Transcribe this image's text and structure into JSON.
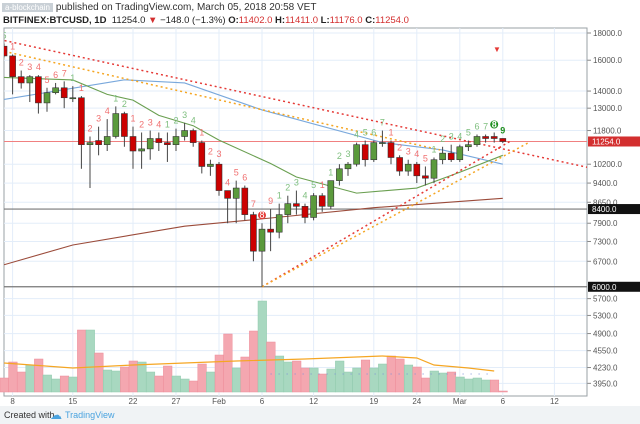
{
  "header": {
    "author_badge": "a-blockchain",
    "published": "published on TradingView.com, March 05, 2018 20:58 VET",
    "symbol": "BITFINEX:BTCUSD, 1D",
    "last": "11254.0",
    "change": "−148.0 (−1.3%)",
    "o_label": "O:",
    "o": "11402.0",
    "h_label": "H:",
    "h": "11411.0",
    "l_label": "L:",
    "l": "11176.0",
    "c_label": "C:",
    "c": "11254.0"
  },
  "footer": {
    "created_with": "Created with",
    "brand": "TradingView"
  },
  "colors": {
    "up": "#5b9a3c",
    "down": "#cc0000",
    "vol_up": "#a8d8c0",
    "vol_down": "#f4a7b0",
    "ma_fast": "#6a9f50",
    "ma_mid": "#79a8dc",
    "ma_slow": "#9b4b3a",
    "grid": "#e3edf9"
  },
  "chart_data": {
    "type": "candlestick",
    "scale": "log",
    "y_ticks": [
      18000,
      16000,
      14000,
      13000,
      11800,
      10200,
      9400,
      8650,
      7900,
      7300,
      6700,
      5700,
      5300,
      4900,
      4550,
      4230,
      3950
    ],
    "y_tick_labels": [
      "18000.0",
      "16000.0",
      "14000.0",
      "13000.0",
      "11800.0",
      "10200.0",
      "9400.0",
      "8650.0",
      "7900.0",
      "7300.0",
      "6700.0",
      "5700.0",
      "5300.0",
      "4900.0",
      "4550.0",
      "4230.0",
      "3950.0"
    ],
    "price_markers": [
      {
        "value": 11254,
        "label": "11254.0",
        "color": "#d32f2f"
      },
      {
        "value": 8400,
        "label": "8400.0",
        "color": "#111111"
      },
      {
        "value": 6000,
        "label": "6000.0",
        "color": "#111111"
      }
    ],
    "x_ticks": [
      {
        "i": 1,
        "label": "8"
      },
      {
        "i": 8,
        "label": "15"
      },
      {
        "i": 15,
        "label": "22"
      },
      {
        "i": 20,
        "label": "27"
      },
      {
        "i": 25,
        "label": "Feb"
      },
      {
        "i": 30,
        "label": "6"
      },
      {
        "i": 36,
        "label": "12"
      },
      {
        "i": 43,
        "label": "19"
      },
      {
        "i": 48,
        "label": "24"
      },
      {
        "i": 53,
        "label": "Mar"
      },
      {
        "i": 58,
        "label": "6"
      },
      {
        "i": 64,
        "label": "12"
      }
    ],
    "ohlc": [
      [
        17000,
        17200,
        16200,
        16300
      ],
      [
        16300,
        16400,
        13800,
        14900
      ],
      [
        14900,
        15300,
        14150,
        14500
      ],
      [
        14500,
        15000,
        13350,
        14900
      ],
      [
        14900,
        15000,
        12700,
        13300
      ],
      [
        13300,
        14200,
        12800,
        13900
      ],
      [
        13900,
        14500,
        13800,
        14200
      ],
      [
        14200,
        14600,
        13000,
        13600
      ],
      [
        13600,
        14300,
        13350,
        13600
      ],
      [
        13600,
        13700,
        10000,
        11100
      ],
      [
        11100,
        11500,
        9200,
        11200
      ],
      [
        11300,
        12000,
        10600,
        11100
      ],
      [
        11100,
        12400,
        10800,
        11500
      ],
      [
        11500,
        13100,
        11400,
        12700
      ],
      [
        12700,
        12800,
        11000,
        11500
      ],
      [
        11500,
        12000,
        10000,
        10800
      ],
      [
        10800,
        11700,
        10000,
        10900
      ],
      [
        10900,
        11800,
        10400,
        11400
      ],
      [
        11400,
        11700,
        10800,
        11200
      ],
      [
        11200,
        11700,
        10300,
        11100
      ],
      [
        11100,
        11900,
        10800,
        11500
      ],
      [
        11500,
        12200,
        11300,
        11800
      ],
      [
        11800,
        11900,
        11000,
        11200
      ],
      [
        11200,
        11300,
        9800,
        10100
      ],
      [
        10100,
        10400,
        9700,
        10200
      ],
      [
        10200,
        10300,
        8900,
        9100
      ],
      [
        9100,
        9100,
        7900,
        8800
      ],
      [
        8800,
        9500,
        7900,
        9200
      ],
      [
        9200,
        9300,
        8000,
        8200
      ],
      [
        8200,
        8300,
        6700,
        7000
      ],
      [
        7000,
        7900,
        6000,
        7700
      ],
      [
        7700,
        8400,
        7000,
        7600
      ],
      [
        7600,
        8600,
        7400,
        8200
      ],
      [
        8200,
        8900,
        7900,
        8600
      ],
      [
        8600,
        9100,
        8200,
        8500
      ],
      [
        8500,
        8600,
        7900,
        8100
      ],
      [
        8100,
        9000,
        8000,
        8900
      ],
      [
        8900,
        9000,
        8300,
        8500
      ],
      [
        8500,
        9500,
        8400,
        9500
      ],
      [
        9500,
        10200,
        9300,
        10000
      ],
      [
        10000,
        10300,
        9700,
        10200
      ],
      [
        10200,
        11200,
        10100,
        11100
      ],
      [
        11100,
        11300,
        10100,
        10400
      ],
      [
        10400,
        11300,
        10300,
        11200
      ],
      [
        11200,
        11800,
        11000,
        11200
      ],
      [
        11200,
        11300,
        10200,
        10500
      ],
      [
        10500,
        10600,
        9700,
        9900
      ],
      [
        9900,
        10400,
        9700,
        10200
      ],
      [
        10200,
        10300,
        9400,
        9700
      ],
      [
        9700,
        10100,
        9300,
        9600
      ],
      [
        9600,
        10500,
        9400,
        10400
      ],
      [
        10400,
        11000,
        10200,
        10700
      ],
      [
        10700,
        11100,
        10300,
        10400
      ],
      [
        10400,
        11100,
        10300,
        11000
      ],
      [
        11000,
        11300,
        10800,
        11100
      ],
      [
        11100,
        11600,
        11000,
        11500
      ],
      [
        11500,
        11600,
        11200,
        11400
      ],
      [
        11500,
        11700,
        11200,
        11400
      ],
      [
        11402,
        11411,
        11176,
        11254
      ]
    ],
    "td_labels": [
      [
        0,
        "5",
        "g"
      ],
      [
        1,
        "1",
        "r"
      ],
      [
        2,
        "2",
        "r"
      ],
      [
        3,
        "3",
        "r"
      ],
      [
        4,
        "4",
        "r"
      ],
      [
        5,
        "5",
        "r"
      ],
      [
        6,
        "6",
        "r"
      ],
      [
        7,
        "7",
        "r"
      ],
      [
        8,
        "1",
        "g"
      ],
      [
        9,
        "1",
        "r"
      ],
      [
        10,
        "2",
        "r"
      ],
      [
        11,
        "3",
        "r"
      ],
      [
        12,
        "4",
        "r"
      ],
      [
        13,
        "1",
        "g"
      ],
      [
        14,
        "2",
        "g"
      ],
      [
        15,
        "1",
        "r"
      ],
      [
        16,
        "2",
        "r"
      ],
      [
        17,
        "3",
        "r"
      ],
      [
        18,
        "4",
        "r"
      ],
      [
        19,
        "1",
        "g"
      ],
      [
        20,
        "2",
        "g"
      ],
      [
        21,
        "3",
        "g"
      ],
      [
        22,
        "4",
        "g"
      ],
      [
        23,
        "1",
        "r"
      ],
      [
        24,
        "2",
        "r"
      ],
      [
        25,
        "3",
        "r"
      ],
      [
        26,
        "4",
        "r"
      ],
      [
        27,
        "5",
        "r"
      ],
      [
        28,
        "6",
        "r"
      ],
      [
        29,
        "7",
        "r"
      ],
      [
        30,
        "8",
        "r"
      ],
      [
        31,
        "9",
        "r"
      ],
      [
        32,
        "1",
        "g"
      ],
      [
        33,
        "2",
        "g"
      ],
      [
        34,
        "3",
        "g"
      ],
      [
        35,
        "4",
        "g"
      ],
      [
        36,
        "5",
        "g"
      ],
      [
        37,
        "1",
        "r"
      ],
      [
        38,
        "1",
        "g"
      ],
      [
        39,
        "2",
        "g"
      ],
      [
        40,
        "3",
        "g"
      ],
      [
        41,
        "4",
        "g"
      ],
      [
        42,
        "5",
        "g"
      ],
      [
        43,
        "6",
        "g"
      ],
      [
        44,
        "7",
        "g"
      ],
      [
        45,
        "1",
        "r"
      ],
      [
        46,
        "2",
        "r"
      ],
      [
        47,
        "3",
        "r"
      ],
      [
        48,
        "4",
        "r"
      ],
      [
        49,
        "5",
        "r"
      ],
      [
        50,
        "1",
        "g"
      ],
      [
        51,
        "2",
        "g"
      ],
      [
        52,
        "3",
        "g"
      ],
      [
        53,
        "4",
        "g"
      ],
      [
        54,
        "5",
        "g"
      ],
      [
        55,
        "6",
        "g"
      ],
      [
        56,
        "7",
        "g"
      ],
      [
        57,
        "8",
        "G"
      ],
      [
        58,
        "9",
        "G"
      ]
    ],
    "ma_fast": [
      [
        0,
        14850
      ],
      [
        8,
        14690
      ],
      [
        12,
        13800
      ],
      [
        15,
        13460
      ],
      [
        18,
        12600
      ],
      [
        22,
        12050
      ],
      [
        25,
        11320
      ],
      [
        31,
        10230
      ],
      [
        34,
        9650
      ],
      [
        41,
        9000
      ],
      [
        48,
        9200
      ],
      [
        53,
        9850
      ],
      [
        58,
        10600
      ]
    ],
    "ma_mid": [
      [
        0,
        13500
      ],
      [
        14,
        14700
      ],
      [
        21,
        14500
      ],
      [
        30,
        12900
      ],
      [
        44,
        11200
      ],
      [
        51,
        10850
      ],
      [
        58,
        10200
      ]
    ],
    "ma_slow": [
      [
        0,
        6600
      ],
      [
        8,
        7190
      ],
      [
        21,
        7800
      ],
      [
        30,
        8050
      ],
      [
        43,
        8450
      ],
      [
        58,
        8800
      ]
    ],
    "trendlines": [
      {
        "from": [
          -0.5,
          17500
        ],
        "to": [
          68,
          10050
        ],
        "color": "#e53935"
      },
      {
        "from": [
          -0.5,
          16700
        ],
        "to": [
          50.7,
          10850
        ],
        "color": "#f5a623"
      },
      {
        "from": [
          30,
          6000
        ],
        "to": [
          59,
          11300
        ],
        "color": "#e53935"
      },
      {
        "from": [
          30,
          6000
        ],
        "to": [
          61,
          11200
        ],
        "color": "#f5a623"
      }
    ],
    "volume": [
      [
        14,
        "d"
      ],
      [
        30,
        "d"
      ],
      [
        20,
        "d"
      ],
      [
        27,
        "u"
      ],
      [
        33,
        "d"
      ],
      [
        17,
        "u"
      ],
      [
        13,
        "u"
      ],
      [
        16,
        "d"
      ],
      [
        15,
        "u"
      ],
      [
        62,
        "d"
      ],
      [
        62,
        "u"
      ],
      [
        39,
        "d"
      ],
      [
        22,
        "u"
      ],
      [
        21,
        "u"
      ],
      [
        25,
        "d"
      ],
      [
        31,
        "d"
      ],
      [
        30,
        "u"
      ],
      [
        20,
        "u"
      ],
      [
        16,
        "d"
      ],
      [
        26,
        "d"
      ],
      [
        16,
        "u"
      ],
      [
        13,
        "u"
      ],
      [
        11,
        "d"
      ],
      [
        28,
        "d"
      ],
      [
        20,
        "u"
      ],
      [
        37,
        "d"
      ],
      [
        58,
        "d"
      ],
      [
        24,
        "u"
      ],
      [
        35,
        "d"
      ],
      [
        61,
        "d"
      ],
      [
        91,
        "u"
      ],
      [
        50,
        "d"
      ],
      [
        36,
        "u"
      ],
      [
        30,
        "u"
      ],
      [
        31,
        "d"
      ],
      [
        24,
        "d"
      ],
      [
        24,
        "u"
      ],
      [
        18,
        "d"
      ],
      [
        23,
        "u"
      ],
      [
        31,
        "u"
      ],
      [
        20,
        "u"
      ],
      [
        24,
        "u"
      ],
      [
        32,
        "d"
      ],
      [
        24,
        "u"
      ],
      [
        28,
        "u"
      ],
      [
        36,
        "d"
      ],
      [
        33,
        "d"
      ],
      [
        27,
        "u"
      ],
      [
        25,
        "d"
      ],
      [
        14,
        "d"
      ],
      [
        21,
        "u"
      ],
      [
        19,
        "u"
      ],
      [
        20,
        "d"
      ],
      [
        15,
        "u"
      ],
      [
        13,
        "u"
      ],
      [
        14,
        "u"
      ],
      [
        12,
        "u"
      ],
      [
        12,
        "d"
      ],
      [
        1,
        "d"
      ]
    ],
    "volume_ma": [
      [
        0,
        29
      ],
      [
        8,
        24
      ],
      [
        15,
        27
      ],
      [
        27,
        31
      ],
      [
        35,
        33
      ],
      [
        44,
        36
      ],
      [
        48,
        34
      ],
      [
        50,
        27
      ],
      [
        54,
        24
      ],
      [
        57,
        21
      ]
    ]
  }
}
